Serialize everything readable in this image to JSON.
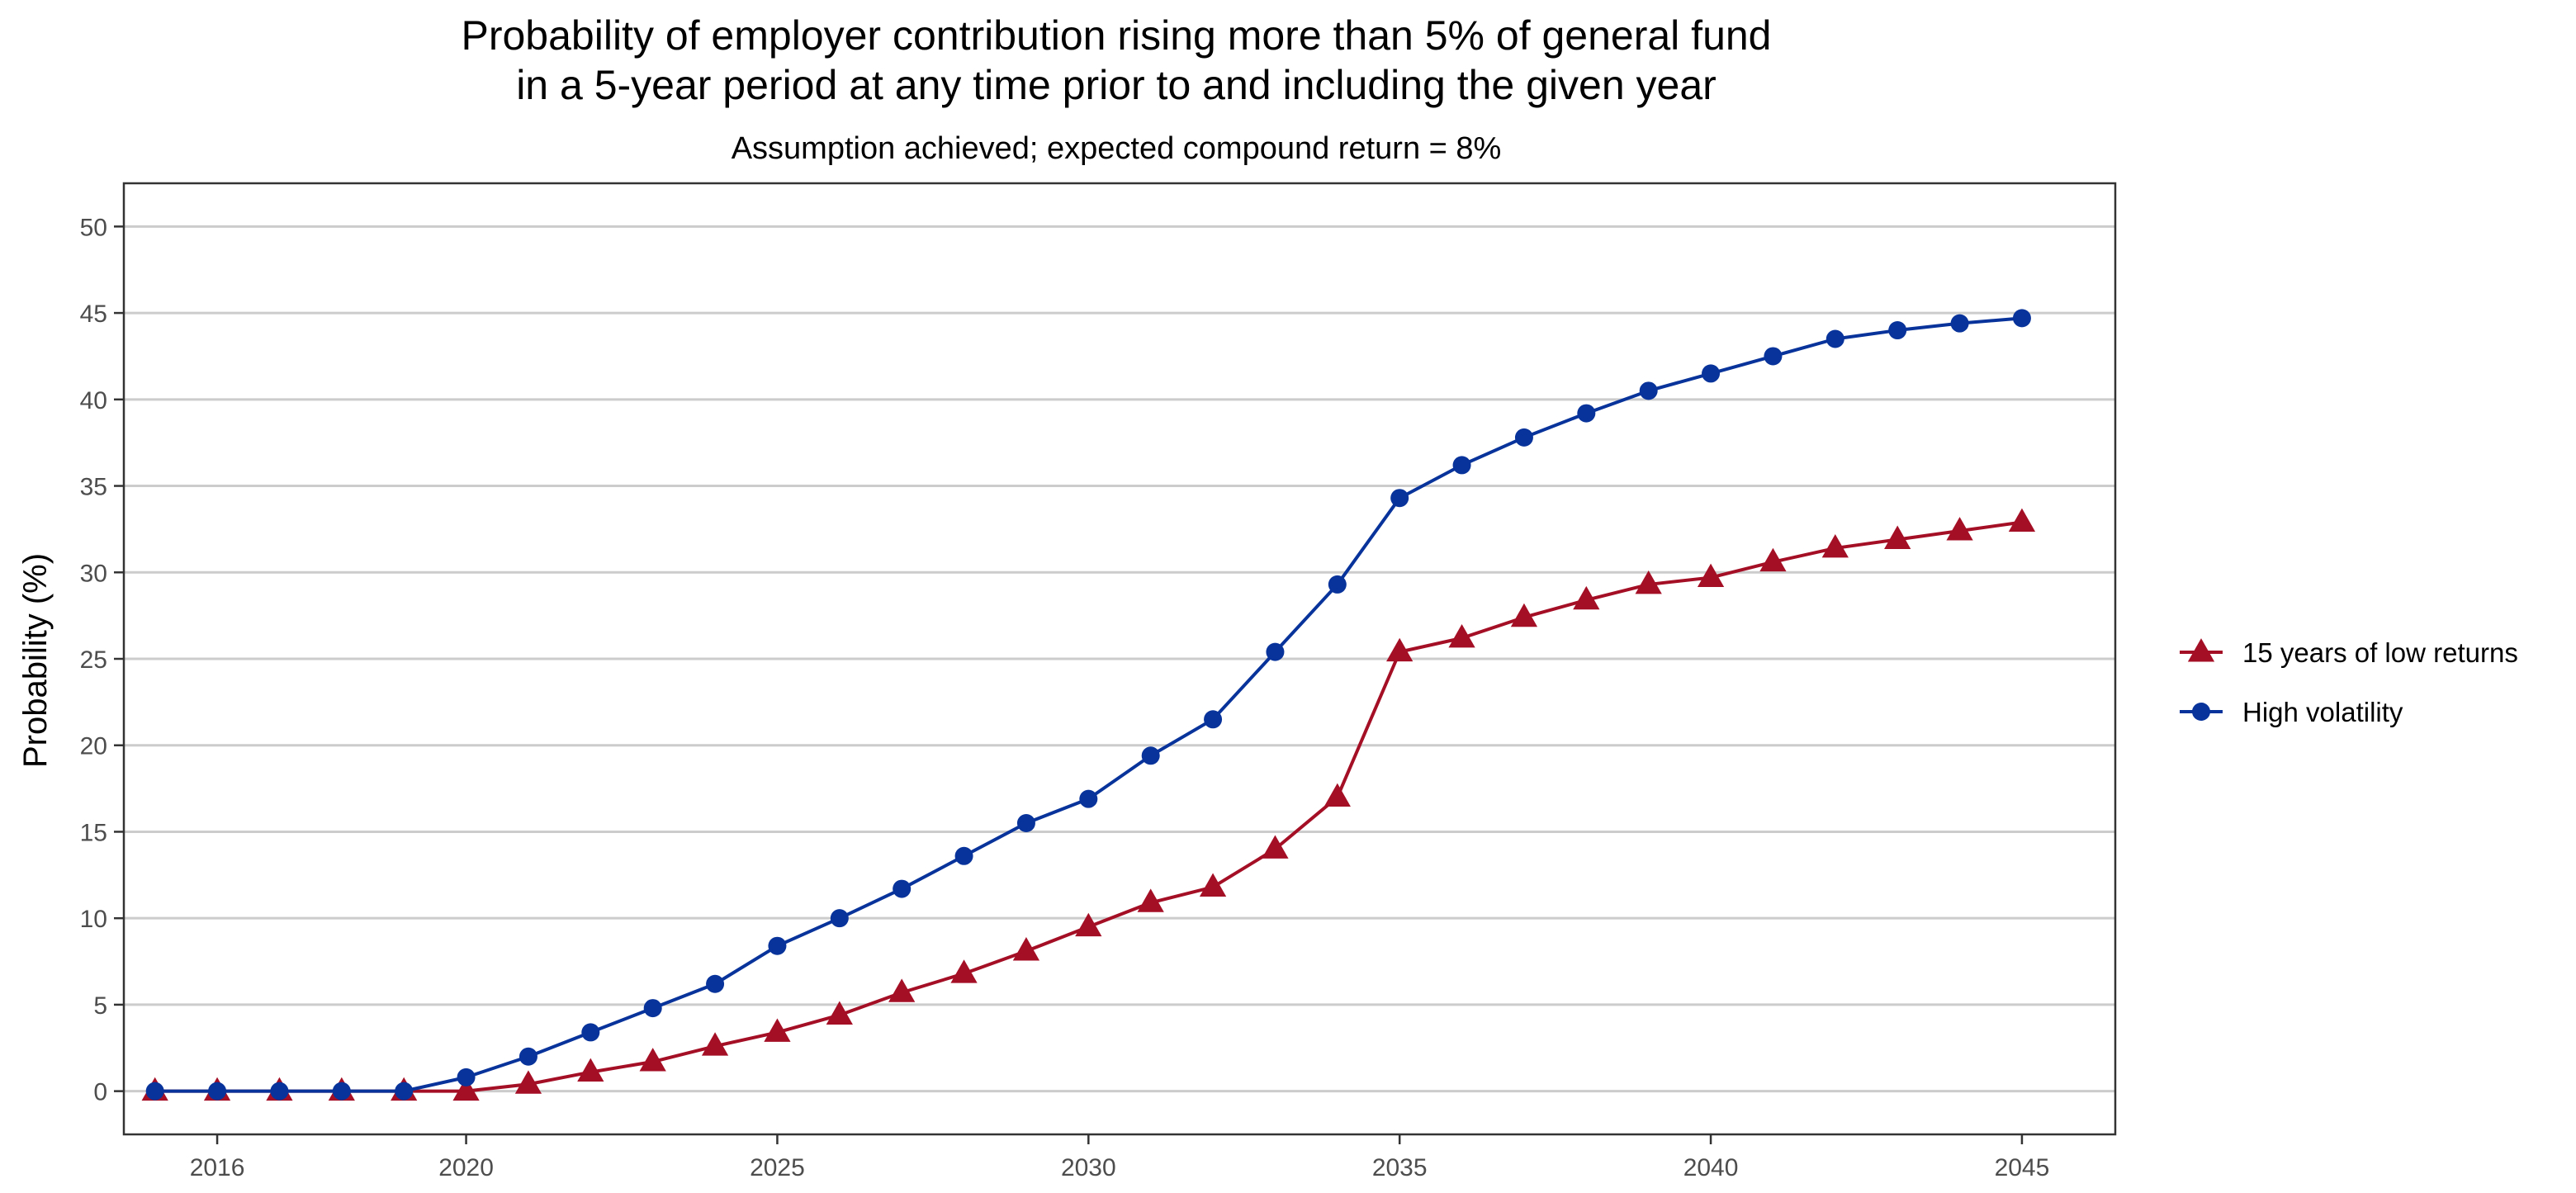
{
  "chart_data": {
    "type": "line",
    "title_line1": "Probability of employer contribution rising more than 5% of general fund",
    "title_line2": "in a 5-year period at any time prior to and including the given year",
    "subtitle": "Assumption achieved; expected compound return = 8%",
    "xlabel": "",
    "ylabel": "Probability (%)",
    "xlim": [
      2014.5,
      2046.5
    ],
    "ylim": [
      -2.5,
      52.5
    ],
    "x_ticks": [
      2016,
      2020,
      2025,
      2030,
      2035,
      2040,
      2045
    ],
    "x_tick_labels": [
      "2016",
      "2020",
      "2025",
      "2030",
      "2035",
      "2040",
      "2045"
    ],
    "y_ticks": [
      0,
      5,
      10,
      15,
      20,
      25,
      30,
      35,
      40,
      45,
      50
    ],
    "y_tick_labels": [
      "0",
      "5",
      "10",
      "15",
      "20",
      "25",
      "30",
      "35",
      "40",
      "45",
      "50"
    ],
    "grid": "horizontal",
    "legend_position": "right",
    "x": [
      2015,
      2016,
      2017,
      2018,
      2019,
      2020,
      2021,
      2022,
      2023,
      2024,
      2025,
      2026,
      2027,
      2028,
      2029,
      2030,
      2031,
      2032,
      2033,
      2034,
      2035,
      2036,
      2037,
      2038,
      2039,
      2040,
      2041,
      2042,
      2043,
      2044,
      2045
    ],
    "series": [
      {
        "name": "15 years of low returns",
        "marker": "triangle",
        "color": "#a50f26",
        "values": [
          0,
          0,
          0,
          0,
          0,
          0,
          0.4,
          1.1,
          1.7,
          2.6,
          3.4,
          4.4,
          5.7,
          6.8,
          8.1,
          9.5,
          10.9,
          11.8,
          14.0,
          17.0,
          25.4,
          26.2,
          27.4,
          28.4,
          29.3,
          29.7,
          30.6,
          31.4,
          31.9,
          32.4,
          32.9
        ]
      },
      {
        "name": "High volatility",
        "marker": "circle",
        "color": "#08339a",
        "values": [
          0,
          0,
          0,
          0,
          0,
          0.8,
          2.0,
          3.4,
          4.8,
          6.2,
          8.4,
          10.0,
          11.7,
          13.6,
          15.5,
          16.9,
          19.4,
          21.5,
          25.4,
          29.3,
          34.3,
          36.2,
          37.8,
          39.2,
          40.5,
          41.5,
          42.5,
          43.5,
          44.0,
          44.4,
          44.7
        ]
      }
    ]
  }
}
